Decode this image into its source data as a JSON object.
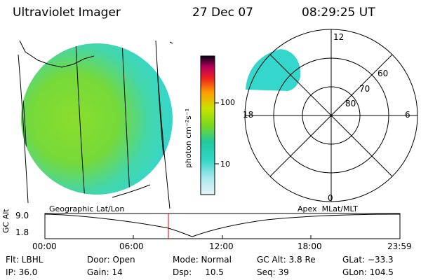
{
  "header": {
    "instrument": "Ultraviolet Imager",
    "date": "27 Dec 07",
    "time": "08:29:25 UT"
  },
  "colorbar": {
    "label": "photon cm⁻²s⁻¹",
    "ticks": [
      "100",
      "10"
    ]
  },
  "polar": {
    "mlt_labels": [
      "12",
      "18",
      "6",
      "0"
    ],
    "lat_labels": [
      "60",
      "70",
      "80"
    ]
  },
  "panel_labels": {
    "left": "Geographic Lat/Lon",
    "right": "Apex  MLat/MLT"
  },
  "gc_plot": {
    "ylabel": "GC Alt",
    "yticks": [
      "9.0",
      "1.8"
    ],
    "xticks": [
      "00:00",
      "06:00",
      "12:00",
      "18:00",
      "23:59"
    ]
  },
  "info": {
    "flt": "Flt: LBHL",
    "ip": "IP: 36.0",
    "door": "Door: Open",
    "gain": "Gain: 14",
    "mode": "Mode: Normal",
    "dsp": "Dsp:     10.5",
    "gcalt": "GC Alt: 3.8 Re",
    "seq": "Seq: 39",
    "glat": "GLat: −33.3",
    "glon": "GLon: 104.5"
  },
  "colors": {
    "image_green": "#7fdc2a",
    "image_cyan": "#33d6cc",
    "marker_red": "#e00000"
  }
}
